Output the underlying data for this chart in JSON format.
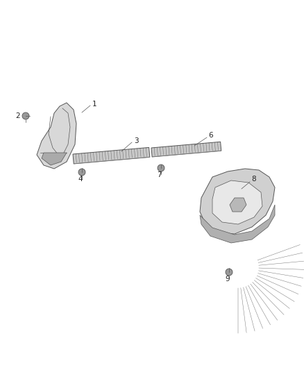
{
  "background_color": "#ffffff",
  "fig_width": 4.38,
  "fig_height": 5.33,
  "dpi": 100,
  "line_color": "#555555",
  "fill_color": "#cccccc",
  "fill_light": "#e0e0e0",
  "fill_dark": "#aaaaaa",
  "label_color": "#222222",
  "font_size": 7.5,
  "screw_r": 0.028
}
